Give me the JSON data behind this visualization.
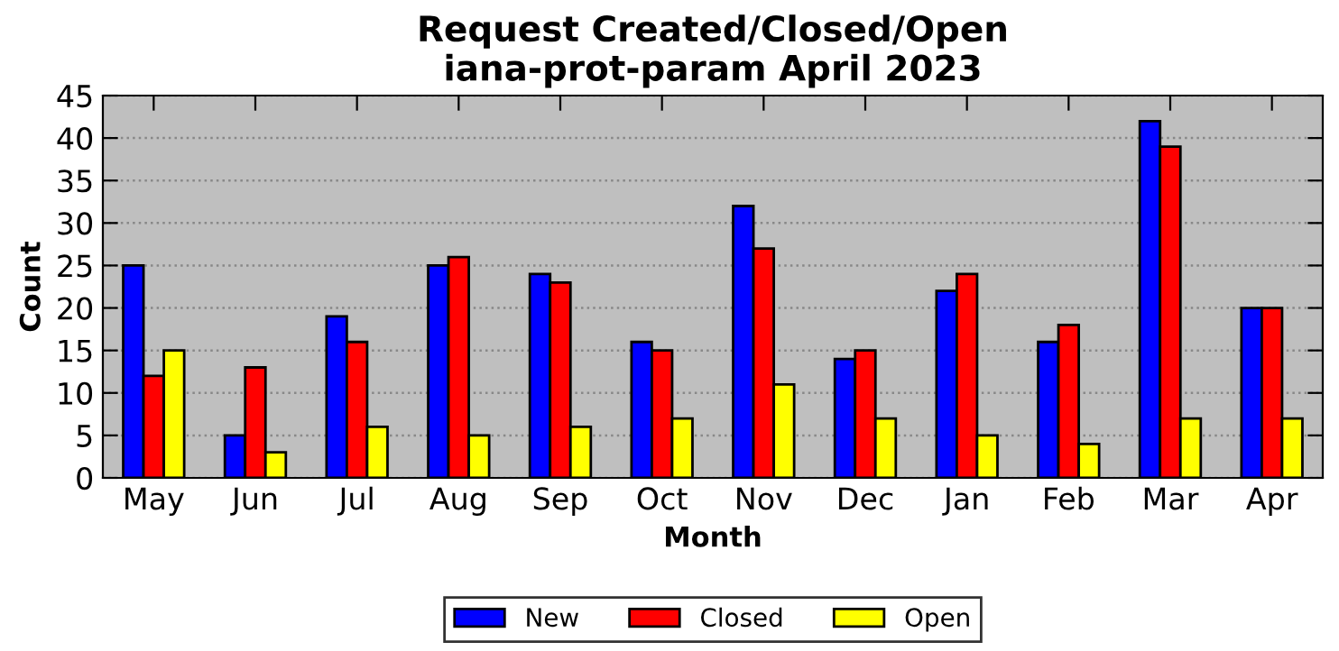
{
  "chart_data": {
    "type": "bar",
    "title": "Request Created/Closed/Open\niana-prot-param April 2023",
    "xlabel": "Month",
    "ylabel": "Count",
    "categories": [
      "May",
      "Jun",
      "Jul",
      "Aug",
      "Sep",
      "Oct",
      "Nov",
      "Dec",
      "Jan",
      "Feb",
      "Mar",
      "Apr"
    ],
    "series": [
      {
        "name": "New",
        "color": "#0000ff",
        "values": [
          25,
          5,
          19,
          25,
          24,
          16,
          32,
          14,
          22,
          16,
          42,
          20
        ]
      },
      {
        "name": "Closed",
        "color": "#ff0000",
        "values": [
          12,
          13,
          16,
          26,
          23,
          15,
          27,
          15,
          24,
          18,
          39,
          20
        ]
      },
      {
        "name": "Open",
        "color": "#ffff00",
        "values": [
          15,
          3,
          6,
          5,
          6,
          7,
          11,
          7,
          5,
          4,
          7,
          7
        ]
      }
    ],
    "ylim": [
      0,
      45
    ],
    "yticks": [
      0,
      5,
      10,
      15,
      20,
      25,
      30,
      35,
      40,
      45
    ],
    "grid": "y",
    "legend": "bottom"
  }
}
